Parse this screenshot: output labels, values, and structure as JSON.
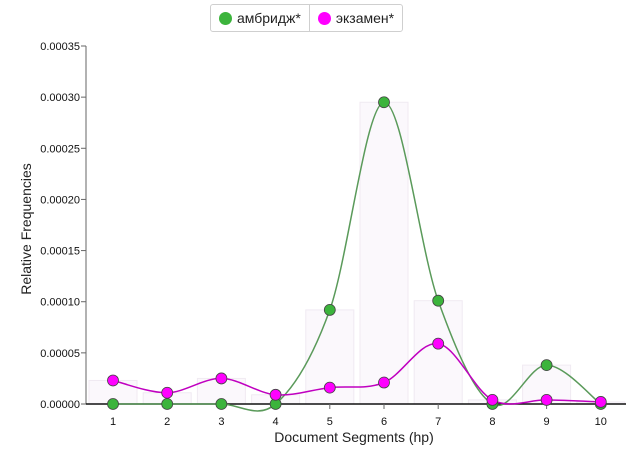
{
  "legend": [
    {
      "label": "амбридж*",
      "color": "#3cb43c"
    },
    {
      "label": "экзамен*",
      "color": "#ff00ff"
    }
  ],
  "chart_data": {
    "type": "line",
    "x": [
      1,
      2,
      3,
      4,
      5,
      6,
      7,
      8,
      9,
      10
    ],
    "xlabel": "Document Segments (hp)",
    "ylabel": "Relative Frequencies",
    "ylim": [
      0,
      0.00035
    ],
    "yticks": [
      "0.00000",
      "0.00005",
      "0.00010",
      "0.00015",
      "0.00020",
      "0.00025",
      "0.00030",
      "0.00035"
    ],
    "series": [
      {
        "name": "амбридж*",
        "color": "#3cb43c",
        "line_color": "#5a9a5a",
        "values": [
          0,
          0,
          0,
          0,
          9.2e-05,
          0.000295,
          0.000101,
          0,
          3.8e-05,
          0
        ]
      },
      {
        "name": "экзамен*",
        "color": "#ff00ff",
        "line_color": "#c000c0",
        "values": [
          2.3e-05,
          1.1e-05,
          2.5e-05,
          9e-06,
          1.6e-05,
          2.1e-05,
          5.9e-05,
          4e-06,
          4e-06,
          2e-06
        ]
      }
    ],
    "bars": [
      2.3e-05,
      1.1e-05,
      2.5e-05,
      9e-06,
      9.2e-05,
      0.000295,
      0.000101,
      4e-06,
      3.8e-05,
      2e-06
    ],
    "grid": false,
    "legend_position": "top-center"
  }
}
